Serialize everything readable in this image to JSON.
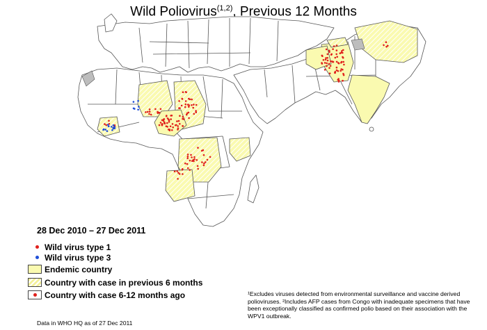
{
  "title": {
    "main": "Wild Poliovirus",
    "superscript": "(1,2)",
    "rest": ", Previous 12 Months"
  },
  "date_range": "28 Dec 2010 – 27 Dec 2011",
  "legend": {
    "items": [
      {
        "label": "Wild virus type 1",
        "symbol": "red-dot"
      },
      {
        "label": "Wild virus type 3",
        "symbol": "blue-dot"
      },
      {
        "label": "Endemic country",
        "symbol": "yellow-box"
      },
      {
        "label": "Country with case in previous 6 months",
        "symbol": "hatched-box"
      },
      {
        "label": "Country with case 6-12 months ago",
        "symbol": "box-with-dot"
      }
    ]
  },
  "footnote": "¹Excludes viruses detected from environmental surveillance and vaccine derived polioviruses. ²Includes AFP cases from Congo with inadequate specimens that have been exceptionally classified as confirmed polio based on their association with the WPV1 outbreak.",
  "source_note": "Data in WHO HQ as of 27 Dec 2011",
  "colors": {
    "endemic": "#fafab0",
    "land": "#ffffff",
    "border": "#555555",
    "water": "#ffffff",
    "disputed": "#bdbdbd",
    "type1": "#e0201c",
    "type3": "#1f4fd8"
  }
}
